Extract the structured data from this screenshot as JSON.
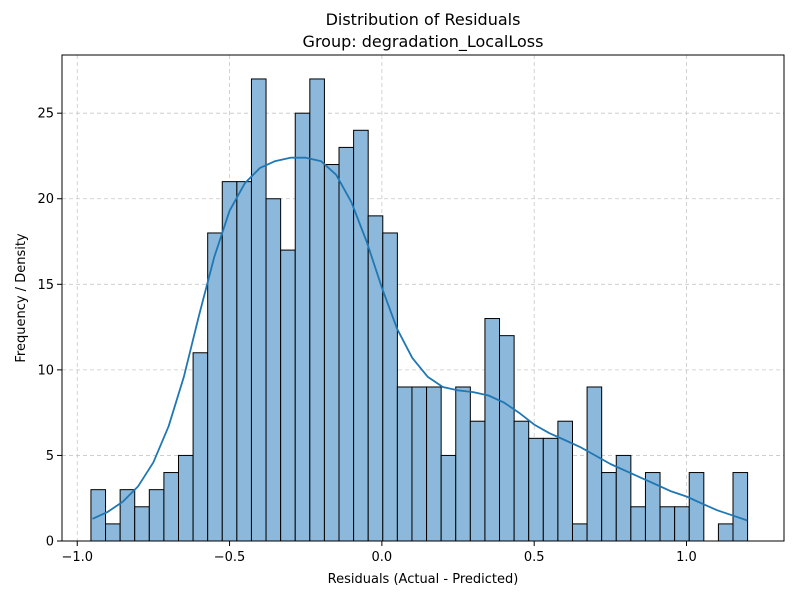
{
  "chart_data": {
    "type": "bar",
    "title": "Distribution of Residuals",
    "subtitle": "Group: degradation_LocalLoss",
    "xlabel": "Residuals (Actual - Predicted)",
    "ylabel": "Frequency / Density",
    "xlim": [
      -1.05,
      1.32
    ],
    "ylim": [
      0,
      28.4
    ],
    "grid": true,
    "x_ticks": [
      -1.0,
      -0.5,
      0.0,
      0.5,
      1.0
    ],
    "x_tick_labels": [
      "−1.0",
      "−0.5",
      "0.0",
      "0.5",
      "1.0"
    ],
    "y_ticks": [
      0,
      5,
      10,
      15,
      20,
      25
    ],
    "y_tick_labels": [
      "0",
      "5",
      "10",
      "15",
      "20",
      "25"
    ],
    "bin_start": -0.955,
    "bin_width": 0.0479,
    "counts": [
      3,
      1,
      3,
      2,
      3,
      4,
      5,
      11,
      18,
      21,
      21,
      27,
      20,
      17,
      25,
      27,
      22,
      23,
      24,
      19,
      18,
      9,
      9,
      9,
      5,
      9,
      7,
      13,
      12,
      7,
      6,
      6,
      7,
      1,
      9,
      4,
      5,
      2,
      4,
      2,
      2,
      4,
      0,
      1,
      4
    ],
    "bar_color": "#8cb9db",
    "bar_edge_color": "#000000",
    "kde_color": "#1f77b4",
    "kde": {
      "x": [
        -0.95,
        -0.9,
        -0.85,
        -0.8,
        -0.75,
        -0.7,
        -0.65,
        -0.6,
        -0.55,
        -0.5,
        -0.45,
        -0.4,
        -0.35,
        -0.3,
        -0.25,
        -0.2,
        -0.15,
        -0.1,
        -0.05,
        0.0,
        0.05,
        0.1,
        0.15,
        0.2,
        0.25,
        0.3,
        0.35,
        0.4,
        0.45,
        0.5,
        0.55,
        0.6,
        0.65,
        0.7,
        0.75,
        0.8,
        0.85,
        0.9,
        0.95,
        1.0,
        1.05,
        1.1,
        1.15,
        1.2
      ],
      "y": [
        1.3,
        1.7,
        2.3,
        3.2,
        4.6,
        6.7,
        9.6,
        13.2,
        16.6,
        19.3,
        20.9,
        21.8,
        22.2,
        22.4,
        22.4,
        22.2,
        21.4,
        19.8,
        17.5,
        14.8,
        12.4,
        10.7,
        9.6,
        9.0,
        8.8,
        8.7,
        8.5,
        8.1,
        7.5,
        6.8,
        6.3,
        5.9,
        5.5,
        5.0,
        4.5,
        4.1,
        3.7,
        3.3,
        2.9,
        2.6,
        2.2,
        1.8,
        1.5,
        1.2
      ]
    }
  }
}
